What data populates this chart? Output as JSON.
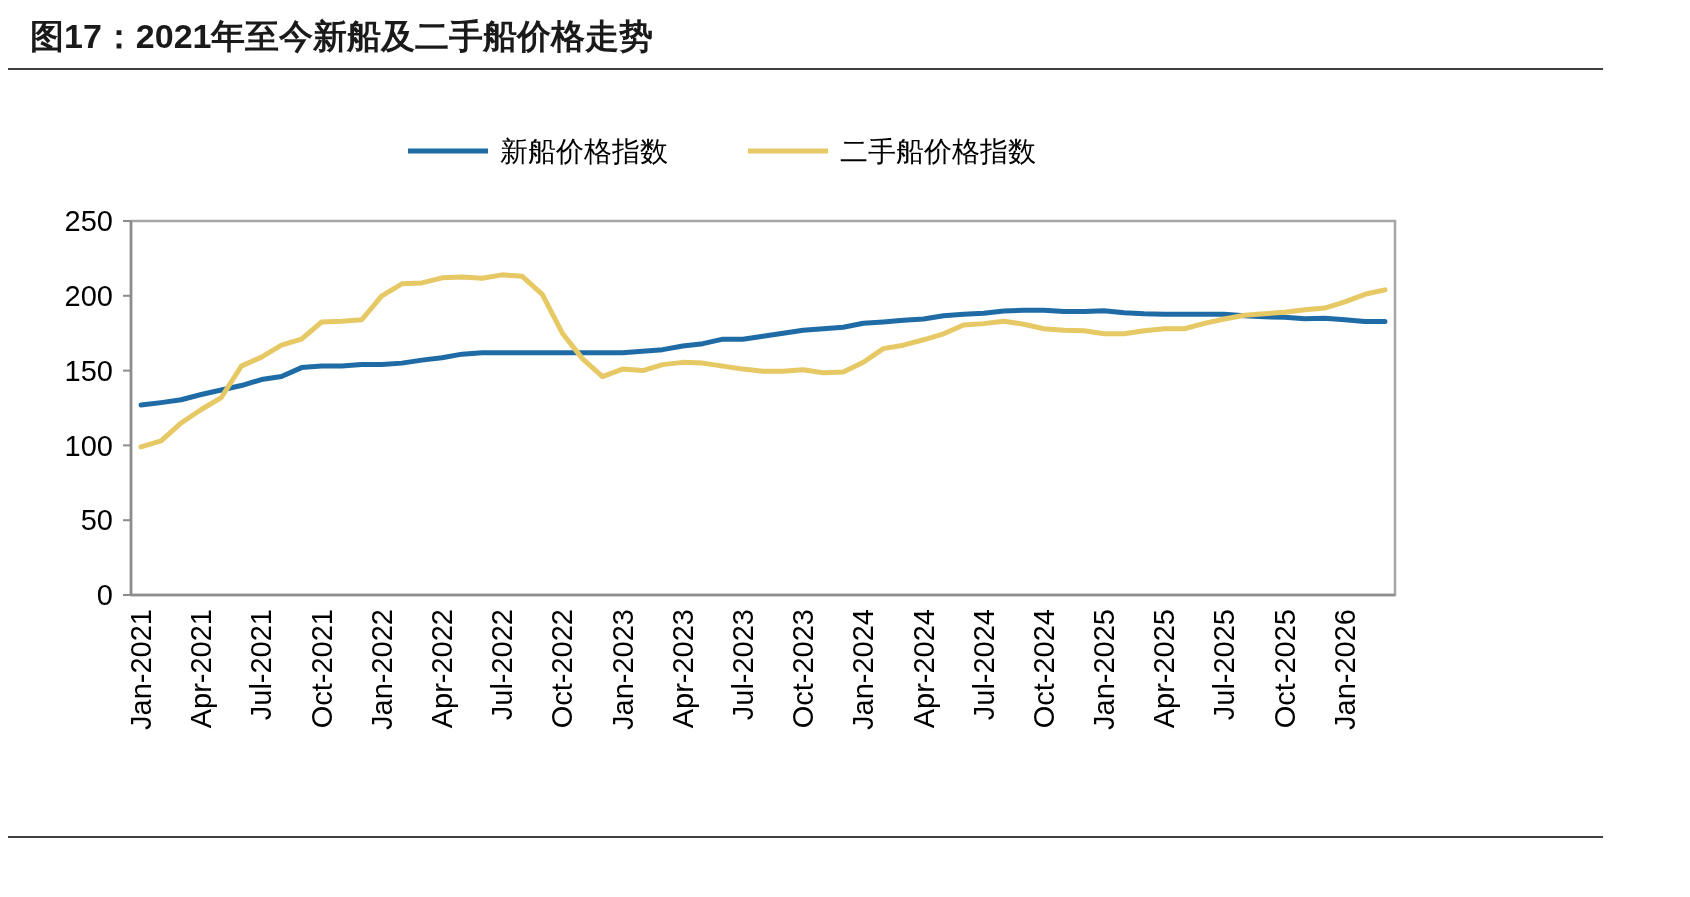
{
  "chart_data": {
    "type": "line",
    "title": "图17：2021年至今新船及二手船价格走势",
    "categories": [
      "Jan-2021",
      null,
      null,
      "Apr-2021",
      null,
      null,
      "Jul-2021",
      null,
      null,
      "Oct-2021",
      null,
      null,
      "Jan-2022",
      null,
      null,
      "Apr-2022",
      null,
      null,
      "Jul-2022",
      null,
      null,
      "Oct-2022",
      null,
      null,
      "Jan-2023",
      null,
      null,
      "Apr-2023",
      null,
      null,
      "Jul-2023",
      null,
      null,
      "Oct-2023",
      null,
      null,
      "Jan-2024",
      null,
      null,
      "Apr-2024",
      null,
      null,
      "Jul-2024",
      null,
      null,
      "Oct-2024",
      null,
      null,
      "Jan-2025",
      null,
      null,
      "Apr-2025",
      null,
      null,
      "Jul-2025",
      null,
      null,
      "Oct-2025",
      null,
      null,
      "Jan-2026",
      null,
      null
    ],
    "series": [
      {
        "name": "新船价格指数",
        "color": "#1f6ba5",
        "values": [
          127,
          128.6,
          130.5,
          134,
          137,
          140,
          144,
          146,
          152,
          153,
          153,
          154,
          154,
          155,
          157,
          158.6,
          161,
          162,
          162,
          162,
          162,
          162,
          162,
          162,
          162,
          163,
          164,
          166.4,
          168,
          171,
          171,
          173,
          175,
          177,
          178,
          179,
          181.6,
          182.5,
          183.6,
          184.5,
          186.7,
          187.6,
          188.4,
          189.8,
          190.4,
          190.4,
          189.5,
          189.5,
          190,
          188.7,
          188,
          187.6,
          187.6,
          187.6,
          187.6,
          186.7,
          186,
          185.6,
          184.7,
          185,
          184,
          182.8,
          182.8
        ]
      },
      {
        "name": "二手船价格指数",
        "color": "#e6c865",
        "values": [
          99,
          103,
          115,
          124,
          132,
          153,
          159,
          167,
          171,
          182.5,
          183,
          184,
          200,
          208,
          208.6,
          212,
          212.5,
          211.7,
          214,
          213,
          201,
          175,
          158,
          146,
          151,
          150,
          154,
          155.5,
          155,
          153,
          151,
          149.5,
          149.5,
          150.6,
          148.6,
          149,
          155.6,
          164.7,
          167,
          170.6,
          174.6,
          180.5,
          181.4,
          183,
          181,
          178,
          177,
          176.6,
          174.6,
          174.6,
          176.6,
          178,
          178,
          181.6,
          184.5,
          187,
          188,
          189,
          190.7,
          191.8,
          196,
          201,
          204
        ]
      }
    ],
    "ylim": [
      0,
      250
    ],
    "yticks": [
      0,
      50,
      100,
      150,
      200,
      250
    ],
    "grid": false,
    "legend": "top",
    "line_style": "solid",
    "marker": "none"
  }
}
